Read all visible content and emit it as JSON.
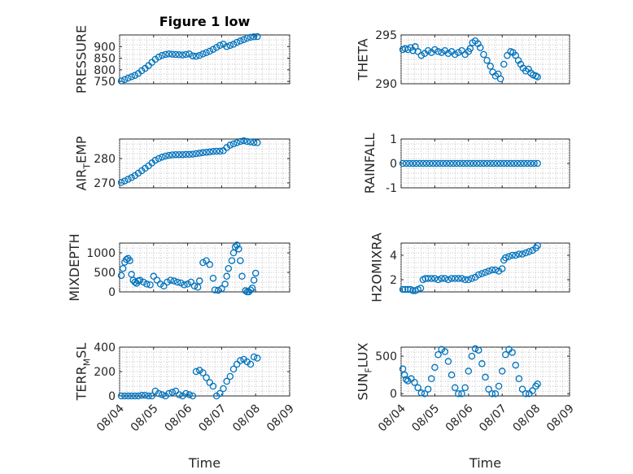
{
  "chart_data": [
    {
      "type": "scatter",
      "title": "Figure 1 low",
      "ylabel": "PRESSURE",
      "xlabel": "",
      "xlim": [
        0,
        5
      ],
      "ylim": [
        740,
        950
      ],
      "xticks": [
        0,
        1,
        2,
        3,
        4,
        5
      ],
      "xticklabels": [
        "",
        "",
        "",
        "",
        "",
        ""
      ],
      "yticks": [
        750,
        800,
        850,
        900
      ],
      "yticklabels": [
        "750",
        "800",
        "850",
        "900"
      ],
      "grid": true,
      "series": [
        {
          "x": [
            0.05,
            0.15,
            0.25,
            0.35,
            0.45,
            0.55,
            0.65,
            0.75,
            0.85,
            0.95,
            1.05,
            1.15,
            1.25,
            1.35,
            1.45,
            1.55,
            1.65,
            1.75,
            1.85,
            1.95,
            2.05,
            2.15,
            2.25,
            2.35,
            2.45,
            2.55,
            2.65,
            2.75,
            2.85,
            2.95,
            3.05,
            3.15,
            3.25,
            3.35,
            3.45,
            3.55,
            3.65,
            3.75,
            3.85,
            3.95,
            4.05
          ],
          "y": [
            752,
            758,
            764,
            770,
            776,
            784,
            796,
            806,
            818,
            832,
            845,
            855,
            862,
            866,
            868,
            867,
            866,
            865,
            864,
            866,
            868,
            860,
            858,
            862,
            868,
            874,
            880,
            888,
            896,
            905,
            910,
            900,
            905,
            910,
            918,
            924,
            930,
            936,
            940,
            942,
            943
          ]
        }
      ]
    },
    {
      "type": "scatter",
      "ylabel": "THETA",
      "xlabel": "",
      "xlim": [
        0,
        5
      ],
      "ylim": [
        290,
        295
      ],
      "xticks": [
        0,
        1,
        2,
        3,
        4,
        5
      ],
      "xticklabels": [
        "",
        "",
        "",
        "",
        "",
        ""
      ],
      "yticks": [
        290,
        295
      ],
      "yticklabels": [
        "290",
        "295"
      ],
      "grid": true,
      "series": [
        {
          "x": [
            0.05,
            0.12,
            0.2,
            0.28,
            0.35,
            0.42,
            0.5,
            0.6,
            0.7,
            0.8,
            0.9,
            1.0,
            1.1,
            1.2,
            1.3,
            1.4,
            1.5,
            1.6,
            1.7,
            1.8,
            1.9,
            2.0,
            2.05,
            2.12,
            2.2,
            2.28,
            2.35,
            2.45,
            2.55,
            2.65,
            2.72,
            2.8,
            2.88,
            2.95,
            3.05,
            3.15,
            3.25,
            3.32,
            3.4,
            3.48,
            3.55,
            3.62,
            3.7,
            3.78,
            3.85,
            3.92,
            4.0,
            4.05
          ],
          "y": [
            293.5,
            293.6,
            293.5,
            293.7,
            293.4,
            293.8,
            293.3,
            292.9,
            293.1,
            293.4,
            293.2,
            293.5,
            293.3,
            293.2,
            293.4,
            293.1,
            293.3,
            293.0,
            293.2,
            293.4,
            293.0,
            293.3,
            293.6,
            294.2,
            294.4,
            294.1,
            293.7,
            293.0,
            292.4,
            291.8,
            291.2,
            290.8,
            291.0,
            290.5,
            292.0,
            292.9,
            293.3,
            293.2,
            292.9,
            292.4,
            292.0,
            291.6,
            291.3,
            291.5,
            291.1,
            290.9,
            290.8,
            290.7
          ]
        }
      ]
    },
    {
      "type": "scatter",
      "ylabel": "AIR_TEMP",
      "xlabel": "",
      "xlim": [
        0,
        5
      ],
      "ylim": [
        268,
        288
      ],
      "xticks": [
        0,
        1,
        2,
        3,
        4,
        5
      ],
      "xticklabels": [
        "",
        "",
        "",
        "",
        "",
        ""
      ],
      "yticks": [
        270,
        280
      ],
      "yticklabels": [
        "270",
        "280"
      ],
      "grid": true,
      "series": [
        {
          "x": [
            0.05,
            0.15,
            0.25,
            0.35,
            0.45,
            0.55,
            0.65,
            0.75,
            0.85,
            0.95,
            1.05,
            1.15,
            1.25,
            1.35,
            1.45,
            1.55,
            1.65,
            1.75,
            1.85,
            1.95,
            2.05,
            2.15,
            2.25,
            2.35,
            2.45,
            2.55,
            2.65,
            2.75,
            2.85,
            2.95,
            3.05,
            3.15,
            3.25,
            3.35,
            3.45,
            3.55,
            3.65,
            3.75,
            3.85,
            3.95,
            4.05
          ],
          "y": [
            270.2,
            270.8,
            271.5,
            272.2,
            273.0,
            274.0,
            275.0,
            276.0,
            277.0,
            278.2,
            279.3,
            280.0,
            280.6,
            281.0,
            281.3,
            281.5,
            281.6,
            281.6,
            281.6,
            281.7,
            281.7,
            281.8,
            282.0,
            282.2,
            282.4,
            282.6,
            282.7,
            282.9,
            283.0,
            283.0,
            283.2,
            284.5,
            285.5,
            286.0,
            286.5,
            287.0,
            287.3,
            287.0,
            286.8,
            286.6,
            286.5
          ]
        }
      ]
    },
    {
      "type": "scatter",
      "ylabel": "RAINFALL",
      "xlabel": "",
      "xlim": [
        0,
        5
      ],
      "ylim": [
        -1,
        1
      ],
      "xticks": [
        0,
        1,
        2,
        3,
        4,
        5
      ],
      "xticklabels": [
        "",
        "",
        "",
        "",
        "",
        ""
      ],
      "yticks": [
        -1,
        0,
        1
      ],
      "yticklabels": [
        "-1",
        "0",
        "1"
      ],
      "grid": true,
      "series": [
        {
          "x": [
            0.05,
            0.15,
            0.25,
            0.35,
            0.45,
            0.55,
            0.65,
            0.75,
            0.85,
            0.95,
            1.05,
            1.15,
            1.25,
            1.35,
            1.45,
            1.55,
            1.65,
            1.75,
            1.85,
            1.95,
            2.05,
            2.15,
            2.25,
            2.35,
            2.45,
            2.55,
            2.65,
            2.75,
            2.85,
            2.95,
            3.05,
            3.15,
            3.25,
            3.35,
            3.45,
            3.55,
            3.65,
            3.75,
            3.85,
            3.95,
            4.05
          ],
          "y": [
            0,
            0,
            0,
            0,
            0,
            0,
            0,
            0,
            0,
            0,
            0,
            0,
            0,
            0,
            0,
            0,
            0,
            0,
            0,
            0,
            0,
            0,
            0,
            0,
            0,
            0,
            0,
            0,
            0,
            0,
            0,
            0,
            0,
            0,
            0,
            0,
            0,
            0,
            0,
            0,
            0
          ]
        }
      ]
    },
    {
      "type": "scatter",
      "ylabel": "MIXDEPTH",
      "xlabel": "",
      "xlim": [
        0,
        5
      ],
      "ylim": [
        0,
        1250
      ],
      "xticks": [
        0,
        1,
        2,
        3,
        4,
        5
      ],
      "xticklabels": [
        "",
        "",
        "",
        "",
        "",
        ""
      ],
      "yticks": [
        0,
        500,
        1000
      ],
      "yticklabels": [
        "0",
        "500",
        "1000"
      ],
      "grid": true,
      "series": [
        {
          "x": [
            0.05,
            0.1,
            0.15,
            0.2,
            0.25,
            0.3,
            0.35,
            0.4,
            0.45,
            0.5,
            0.55,
            0.6,
            0.7,
            0.8,
            0.9,
            1.0,
            1.1,
            1.2,
            1.3,
            1.4,
            1.5,
            1.6,
            1.7,
            1.8,
            1.9,
            2.0,
            2.1,
            2.2,
            2.3,
            2.35,
            2.45,
            2.55,
            2.65,
            2.75,
            2.8,
            2.9,
            3.0,
            3.1,
            3.15,
            3.2,
            3.3,
            3.35,
            3.4,
            3.45,
            3.5,
            3.55,
            3.6,
            3.7,
            3.75,
            3.8,
            3.85,
            3.9,
            3.95,
            4.0
          ],
          "y": [
            420,
            600,
            760,
            830,
            860,
            800,
            450,
            300,
            250,
            220,
            280,
            300,
            250,
            200,
            180,
            400,
            300,
            200,
            150,
            250,
            300,
            280,
            250,
            230,
            180,
            200,
            250,
            150,
            120,
            280,
            750,
            800,
            700,
            350,
            50,
            40,
            80,
            200,
            400,
            600,
            800,
            1000,
            1150,
            1200,
            1100,
            800,
            400,
            30,
            0,
            0,
            50,
            100,
            300,
            480
          ]
        }
      ]
    },
    {
      "type": "scatter",
      "ylabel": "H2OMIXRA",
      "xlabel": "",
      "xlim": [
        0,
        5
      ],
      "ylim": [
        1,
        5
      ],
      "xticks": [
        0,
        1,
        2,
        3,
        4,
        5
      ],
      "xticklabels": [
        "",
        "",
        "",
        "",
        "",
        ""
      ],
      "yticks": [
        2,
        4
      ],
      "yticklabels": [
        "2",
        "4"
      ],
      "grid": true,
      "series": [
        {
          "x": [
            0.05,
            0.12,
            0.2,
            0.28,
            0.35,
            0.42,
            0.5,
            0.58,
            0.65,
            0.72,
            0.8,
            0.9,
            1.0,
            1.1,
            1.2,
            1.3,
            1.4,
            1.5,
            1.6,
            1.7,
            1.8,
            1.9,
            2.0,
            2.1,
            2.2,
            2.3,
            2.4,
            2.5,
            2.6,
            2.7,
            2.8,
            2.9,
            3.0,
            3.05,
            3.1,
            3.2,
            3.3,
            3.4,
            3.5,
            3.6,
            3.7,
            3.8,
            3.9,
            4.0,
            4.05
          ],
          "y": [
            1.2,
            1.2,
            1.2,
            1.2,
            1.1,
            1.1,
            1.2,
            1.3,
            2.0,
            2.1,
            2.1,
            2.1,
            2.1,
            2.0,
            2.1,
            2.1,
            2.0,
            2.1,
            2.1,
            2.1,
            2.1,
            2.0,
            2.0,
            2.1,
            2.2,
            2.4,
            2.5,
            2.6,
            2.7,
            2.8,
            2.8,
            2.7,
            2.9,
            3.6,
            3.8,
            3.9,
            4.0,
            4.0,
            4.1,
            4.1,
            4.2,
            4.3,
            4.4,
            4.6,
            4.8
          ]
        }
      ]
    },
    {
      "type": "scatter",
      "ylabel": "TERR_MSL",
      "xlabel": "Time",
      "xlim": [
        0,
        5
      ],
      "ylim": [
        0,
        400
      ],
      "xticks": [
        0,
        1,
        2,
        3,
        4,
        5
      ],
      "xticklabels": [
        "08/04",
        "08/05",
        "08/06",
        "08/07",
        "08/08",
        "08/09"
      ],
      "yticks": [
        0,
        200,
        400
      ],
      "yticklabels": [
        "0",
        "200",
        "400"
      ],
      "grid": true,
      "series": [
        {
          "x": [
            0.05,
            0.15,
            0.25,
            0.35,
            0.45,
            0.55,
            0.65,
            0.75,
            0.85,
            0.95,
            1.05,
            1.15,
            1.25,
            1.35,
            1.45,
            1.55,
            1.65,
            1.75,
            1.85,
            1.95,
            2.05,
            2.15,
            2.25,
            2.35,
            2.45,
            2.55,
            2.65,
            2.75,
            2.85,
            2.95,
            3.05,
            3.15,
            3.25,
            3.35,
            3.45,
            3.55,
            3.65,
            3.75,
            3.85,
            3.95,
            4.05
          ],
          "y": [
            0,
            0,
            0,
            0,
            0,
            0,
            5,
            5,
            0,
            0,
            40,
            20,
            10,
            0,
            20,
            30,
            40,
            10,
            0,
            20,
            10,
            0,
            200,
            210,
            190,
            150,
            110,
            80,
            0,
            20,
            60,
            120,
            160,
            220,
            260,
            290,
            300,
            280,
            260,
            320,
            310
          ]
        }
      ]
    },
    {
      "type": "scatter",
      "ylabel": "SUN_FLUX",
      "xlabel": "Time",
      "xlim": [
        0,
        5
      ],
      "ylim": [
        -30,
        620
      ],
      "xticks": [
        0,
        1,
        2,
        3,
        4,
        5
      ],
      "xticklabels": [
        "08/04",
        "08/05",
        "08/06",
        "08/07",
        "08/08",
        "08/09"
      ],
      "yticks": [
        0,
        500
      ],
      "yticklabels": [
        "0",
        "500"
      ],
      "grid": true,
      "series": [
        {
          "x": [
            0.05,
            0.1,
            0.15,
            0.2,
            0.3,
            0.4,
            0.5,
            0.6,
            0.7,
            0.8,
            0.9,
            1.0,
            1.1,
            1.2,
            1.3,
            1.4,
            1.5,
            1.6,
            1.7,
            1.8,
            1.9,
            2.0,
            2.1,
            2.2,
            2.3,
            2.4,
            2.5,
            2.6,
            2.7,
            2.8,
            2.9,
            3.0,
            3.1,
            3.2,
            3.3,
            3.4,
            3.5,
            3.6,
            3.7,
            3.8,
            3.9,
            4.0,
            4.05
          ],
          "y": [
            330,
            250,
            190,
            170,
            200,
            150,
            80,
            10,
            0,
            60,
            200,
            350,
            520,
            590,
            560,
            430,
            250,
            80,
            0,
            0,
            80,
            300,
            500,
            600,
            580,
            400,
            220,
            60,
            0,
            0,
            100,
            300,
            520,
            590,
            550,
            380,
            200,
            60,
            0,
            0,
            40,
            100,
            130
          ]
        }
      ]
    }
  ]
}
